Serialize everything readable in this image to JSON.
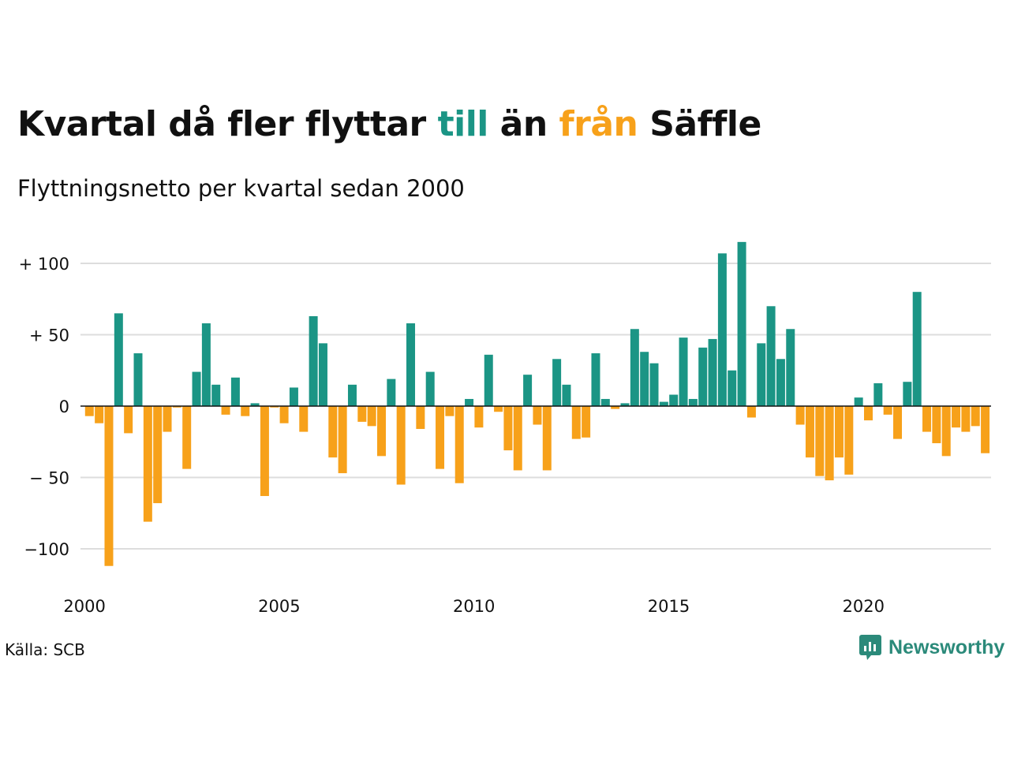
{
  "title": {
    "part1": "Kvartal då fler flyttar ",
    "part2": "till",
    "part3": " än ",
    "part4": "från",
    "part5": " Säffle"
  },
  "subtitle": "Flyttningsnetto per kvartal sedan 2000",
  "source": "Källa: SCB",
  "brand": {
    "name": "Newsworthy",
    "icon": "newsworthy-logo-icon"
  },
  "colors": {
    "positive": "#1b9585",
    "negative": "#f7a11a",
    "title_till": "#1b9585",
    "title_fran": "#f7a11a"
  },
  "chart_data": {
    "type": "bar",
    "title": "Kvartal då fler flyttar till än från Säffle",
    "subtitle": "Flyttningsnetto per kvartal sedan 2000",
    "xlabel": "",
    "ylabel": "",
    "x_start_year": 2000,
    "quarters_per_year": 4,
    "x_tick_labels": [
      "2000",
      "2005",
      "2010",
      "2015",
      "2020"
    ],
    "y_ticks": [
      100,
      50,
      0,
      -50,
      -100
    ],
    "y_tick_labels": [
      "+ 100",
      "+  50",
      "0",
      "− 50",
      "−100"
    ],
    "ylim": [
      -120,
      120
    ],
    "grid": true,
    "values": [
      -7,
      -12,
      -112,
      65,
      -19,
      37,
      -81,
      -68,
      -18,
      -1,
      -44,
      24,
      58,
      15,
      -6,
      20,
      -7,
      2,
      -63,
      -1,
      -12,
      13,
      -18,
      63,
      44,
      -36,
      -47,
      15,
      -11,
      -14,
      -35,
      19,
      -55,
      58,
      -16,
      24,
      -44,
      -7,
      -54,
      5,
      -15,
      36,
      -4,
      -31,
      -45,
      22,
      -13,
      -45,
      33,
      15,
      -23,
      -22,
      37,
      5,
      -2,
      2,
      54,
      38,
      30,
      3,
      8,
      48,
      5,
      41,
      47,
      107,
      25,
      115,
      -8,
      44,
      70,
      33,
      54,
      -13,
      -36,
      -49,
      -52,
      -36,
      -48,
      6,
      -10,
      16,
      -6,
      -23,
      17,
      80,
      -18,
      -26,
      -35,
      -15,
      -18,
      -14,
      -33
    ]
  }
}
